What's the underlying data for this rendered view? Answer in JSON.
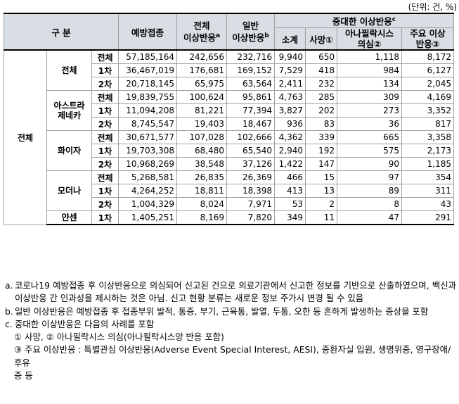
{
  "unit_label": "(단위: 건, %)",
  "header": {
    "category": "구 분",
    "vaccinations": "예방접종",
    "total_reactions": "전체",
    "total_reactions_2": "이상반응",
    "total_sup": "a",
    "general": "일반",
    "general_2": "이상반응",
    "general_sup": "b",
    "serious": "중대한 이상반응",
    "serious_sup": "c",
    "subtotal": "소계",
    "death": "사망",
    "death_sup": "①",
    "anaphylaxis": "아나필락시스",
    "anaphylaxis_2": "의심",
    "anaphylaxis_sup": "②",
    "major": "주요 이상",
    "major_2": "반응",
    "major_sup": "③"
  },
  "rows": [
    {
      "dose": "전체",
      "vacc": "57,185,164",
      "total": "242,656",
      "general": "232,716",
      "subtotal": "9,940",
      "death": "650",
      "ana": "1,118",
      "major": "8,172"
    },
    {
      "dose": "1차",
      "vacc": "36,467,019",
      "total": "176,681",
      "general": "169,152",
      "subtotal": "7,529",
      "death": "418",
      "ana": "984",
      "major": "6,127"
    },
    {
      "dose": "2차",
      "vacc": "20,718,145",
      "total": "65,975",
      "general": "63,564",
      "subtotal": "2,411",
      "death": "232",
      "ana": "134",
      "major": "2,045"
    },
    {
      "dose": "전체",
      "vacc": "19,839,755",
      "total": "100,624",
      "general": "95,861",
      "subtotal": "4,763",
      "death": "285",
      "ana": "309",
      "major": "4,169"
    },
    {
      "dose": "1차",
      "vacc": "11,094,208",
      "total": "81,221",
      "general": "77,394",
      "subtotal": "3,827",
      "death": "202",
      "ana": "273",
      "major": "3,352"
    },
    {
      "dose": "2차",
      "vacc": "8,745,547",
      "total": "19,403",
      "general": "18,467",
      "subtotal": "936",
      "death": "83",
      "ana": "36",
      "major": "817"
    },
    {
      "dose": "전체",
      "vacc": "30,671,577",
      "total": "107,028",
      "general": "102,666",
      "subtotal": "4,362",
      "death": "339",
      "ana": "665",
      "major": "3,358"
    },
    {
      "dose": "1차",
      "vacc": "19,703,308",
      "total": "68,480",
      "general": "65,540",
      "subtotal": "2,940",
      "death": "192",
      "ana": "575",
      "major": "2,173"
    },
    {
      "dose": "2차",
      "vacc": "10,968,269",
      "total": "38,548",
      "general": "37,126",
      "subtotal": "1,422",
      "death": "147",
      "ana": "90",
      "major": "1,185"
    },
    {
      "dose": "전체",
      "vacc": "5,268,581",
      "total": "26,835",
      "general": "26,369",
      "subtotal": "466",
      "death": "15",
      "ana": "97",
      "major": "354"
    },
    {
      "dose": "1차",
      "vacc": "4,264,252",
      "total": "18,811",
      "general": "18,398",
      "subtotal": "413",
      "death": "13",
      "ana": "89",
      "major": "311"
    },
    {
      "dose": "2차",
      "vacc": "1,004,329",
      "total": "8,024",
      "general": "7,971",
      "subtotal": "53",
      "death": "2",
      "ana": "8",
      "major": "43"
    },
    {
      "dose": "1차",
      "vacc": "1,405,251",
      "total": "8,169",
      "general": "7,820",
      "subtotal": "349",
      "death": "11",
      "ana": "47",
      "major": "291"
    }
  ],
  "group_label": "전체",
  "vaccines": {
    "all": "전체",
    "astra_1": "아스트라",
    "astra_2": "제네카",
    "pfizer": "화이자",
    "moderna": "모더나",
    "janssen": "얀센"
  },
  "notes": {
    "a_label": "a.",
    "a_text": "코로나19 예방접종 후 이상반응으로 의심되어 신고된 건으로 의료기관에서 신고한 정보를 기반으로 산출하였으며, 백신과 이상반응 간 인과성을 제시하는 것은 아님. 신고 현황 분류는 새로운 정보 주가시 변경 될 수 있음",
    "b_label": "b.",
    "b_text": "일반 이상반응은 예방접종 후 접종부위 발적, 통증, 부기, 근육통, 발열, 두통, 오한 등 흔하게 발생하는 증상을 포함",
    "c_label": "c.",
    "c_text": "중대한 이상반응은 다음의 사례를 포함",
    "c1": "① 사망, ② 아나필락시스 의심(아나필락시스양 반응 포함)",
    "c2": "③ 주요 이상반응 : 특별관심 이상반응(Adverse Event Special Interest, AESI), 중환자실 입원, 생명위중, 영구장애/후유",
    "c3": "증 등"
  }
}
